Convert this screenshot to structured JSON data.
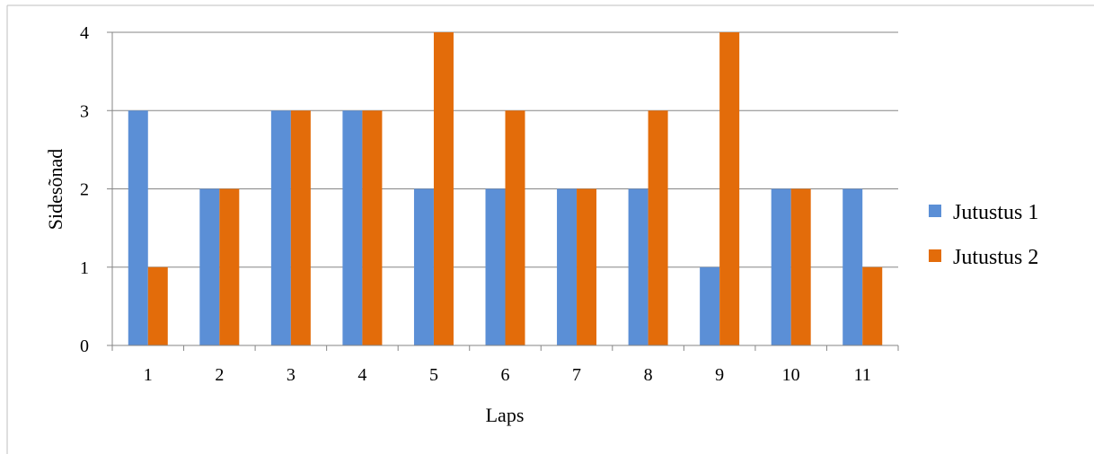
{
  "chart_data": {
    "type": "bar",
    "title": "",
    "xlabel": "Laps",
    "ylabel": "Sidesõnad",
    "categories": [
      "1",
      "2",
      "3",
      "4",
      "5",
      "6",
      "7",
      "8",
      "9",
      "10",
      "11"
    ],
    "yticks": [
      "0",
      "1",
      "2",
      "3",
      "4"
    ],
    "ylim": [
      0,
      4
    ],
    "grid": true,
    "legend_position": "right",
    "series": [
      {
        "name": "Jutustus 1",
        "color": "#5B8FD6",
        "values": [
          3,
          2,
          3,
          3,
          2,
          2,
          2,
          2,
          1,
          2,
          2
        ]
      },
      {
        "name": "Jutustus 2",
        "color": "#E36C0A",
        "values": [
          1,
          2,
          3,
          3,
          4,
          3,
          2,
          3,
          4,
          2,
          1
        ]
      }
    ]
  }
}
